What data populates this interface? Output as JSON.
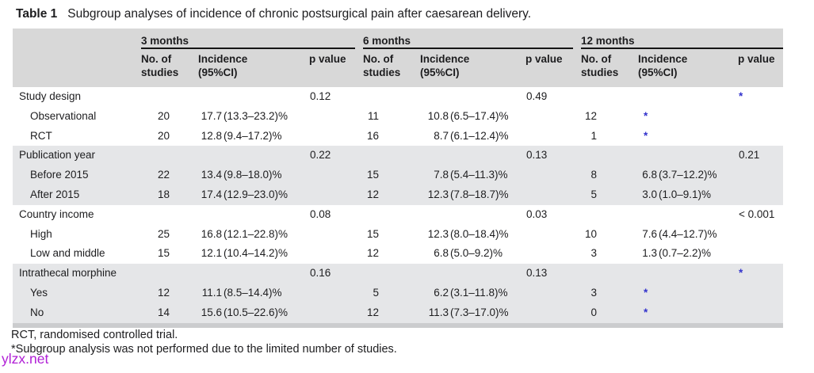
{
  "title": {
    "label": "Table 1",
    "text": "Subgroup analyses of incidence of chronic postsurgical pain after caesarean delivery."
  },
  "columns": {
    "groups": [
      {
        "label": "3 months"
      },
      {
        "label": "6 months"
      },
      {
        "label": "12 months"
      }
    ],
    "subheaders": {
      "studies": "No. of studies",
      "incidence": "Incidence (95%CI)",
      "p": "p value"
    }
  },
  "body": [
    {
      "band": "plain",
      "rows": [
        {
          "label": "Study design",
          "indent": false,
          "cells": [
            "",
            "",
            "0.12",
            "",
            "",
            "0.49",
            "",
            "",
            "*"
          ]
        },
        {
          "label": "Observational",
          "indent": true,
          "cells": [
            "20",
            "17.7 (13.3–23.2)%",
            "",
            "11",
            "10.8 (6.5–17.4)%",
            "",
            "12",
            "*",
            ""
          ]
        },
        {
          "label": "RCT",
          "indent": true,
          "cells": [
            "20",
            "12.8 (9.4–17.2)%",
            "",
            "16",
            "8.7 (6.1–12.4)%",
            "",
            "1",
            "*",
            ""
          ]
        }
      ]
    },
    {
      "band": "shaded",
      "rows": [
        {
          "label": "Publication year",
          "indent": false,
          "cells": [
            "",
            "",
            "0.22",
            "",
            "",
            "0.13",
            "",
            "",
            "0.21"
          ]
        },
        {
          "label": "Before 2015",
          "indent": true,
          "cells": [
            "22",
            "13.4 (9.8–18.0)%",
            "",
            "15",
            "7.8 (5.4–11.3)%",
            "",
            "8",
            "6.8 (3.7–12.2)%",
            ""
          ]
        },
        {
          "label": "After 2015",
          "indent": true,
          "cells": [
            "18",
            "17.4 (12.9–23.0)%",
            "",
            "12",
            "12.3 (7.8–18.7)%",
            "",
            "5",
            "3.0 (1.0–9.1)%",
            ""
          ]
        }
      ]
    },
    {
      "band": "plain",
      "rows": [
        {
          "label": "Country income",
          "indent": false,
          "cells": [
            "",
            "",
            "0.08",
            "",
            "",
            "0.03",
            "",
            "",
            "< 0.001"
          ]
        },
        {
          "label": "High",
          "indent": true,
          "cells": [
            "25",
            "16.8 (12.1–22.8)%",
            "",
            "15",
            "12.3 (8.0–18.4)%",
            "",
            "10",
            "7.6 (4.4–12.7)%",
            ""
          ]
        },
        {
          "label": "Low and middle",
          "indent": true,
          "cells": [
            "15",
            "12.1 (10.4–14.2)%",
            "",
            "12",
            "6.8 (5.0–9.2)%",
            "",
            "3",
            "1.3 (0.7–2.2)%",
            ""
          ]
        }
      ]
    },
    {
      "band": "shaded",
      "rows": [
        {
          "label": "Intrathecal morphine",
          "indent": false,
          "cells": [
            "",
            "",
            "0.16",
            "",
            "",
            "0.13",
            "",
            "",
            "*"
          ]
        },
        {
          "label": "Yes",
          "indent": true,
          "cells": [
            "12",
            "11.1 (8.5–14.4)%",
            "",
            "5",
            "6.2 (3.1–11.8)%",
            "",
            "3",
            "*",
            ""
          ]
        },
        {
          "label": "No",
          "indent": true,
          "cells": [
            "14",
            "15.6 (10.5–22.6)%",
            "",
            "12",
            "11.3 (7.3–17.0)%",
            "",
            "0",
            "*",
            ""
          ]
        }
      ]
    }
  ],
  "footnotes": [
    "RCT, randomised controlled trial.",
    "*Subgroup analysis was not performed due to the limited number of studies."
  ],
  "asterisk_symbol": "*",
  "watermark": "ylzx.net",
  "colors": {
    "header_bg": "#d8d8d8",
    "band_bg": "#e5e6e8",
    "bottom_bar": "#cbccce",
    "asterisk_blue": "#3333cc",
    "watermark_purple": "#b01fd6",
    "text": "#1d1d1f"
  }
}
